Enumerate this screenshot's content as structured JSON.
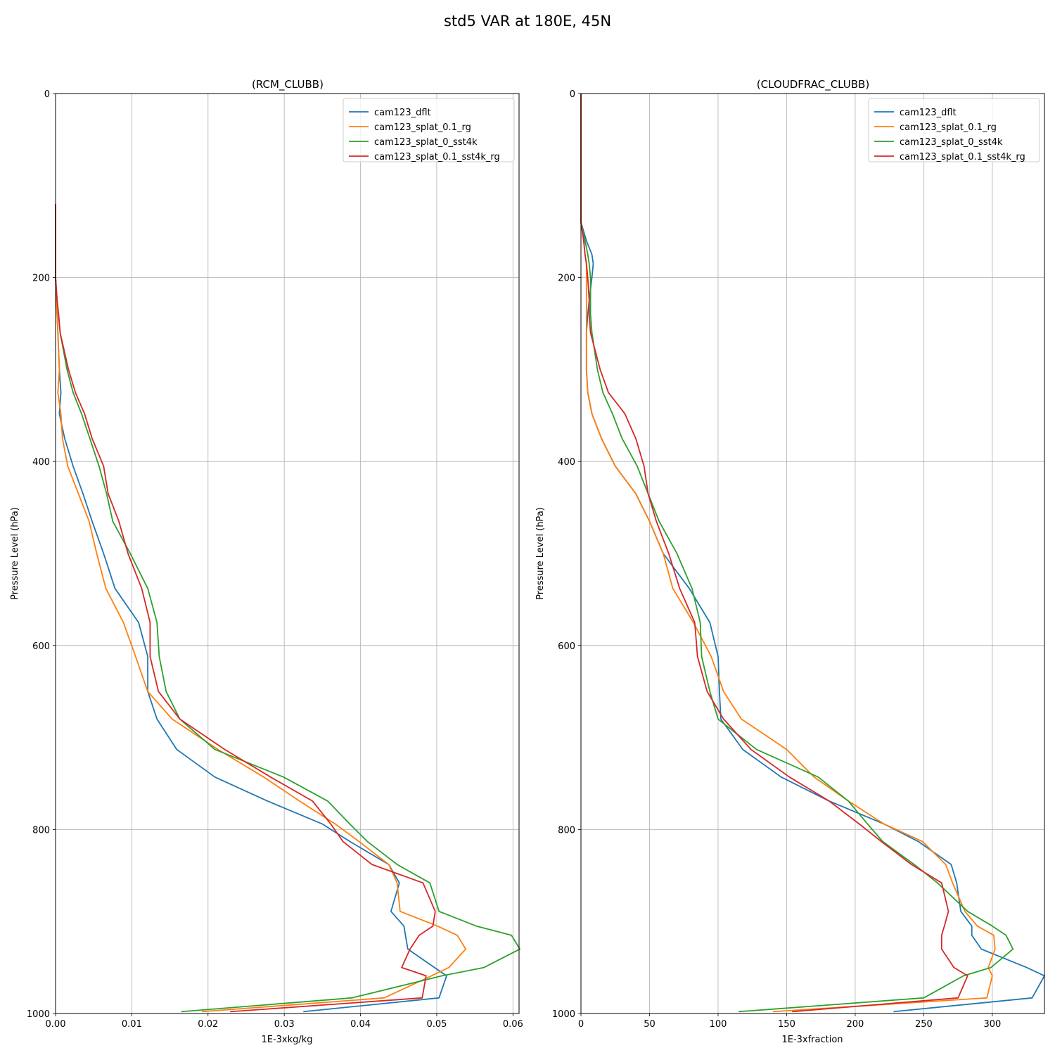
{
  "figure": {
    "title": "std5 VAR at 180E, 45N"
  },
  "colors": {
    "cam123_dflt": "#1f77b4",
    "cam123_splat_0.1_rg": "#ff7f0e",
    "cam123_splat_0_sst4k": "#2ca02c",
    "cam123_splat_0.1_sst4k_rg": "#d62728",
    "grid": "#b0b0b0"
  },
  "chart_data": [
    {
      "type": "line",
      "title": "(RCM_CLUBB)",
      "xlabel": "1E-3xkg/kg",
      "ylabel": "Pressure Level (hPa)",
      "xlim": [
        0,
        0.0608
      ],
      "ylim": [
        1000,
        0
      ],
      "y_inverted": true,
      "grid": true,
      "legend": "top-right",
      "xticks": [
        0,
        0.01,
        0.02,
        0.03,
        0.04,
        0.05,
        0.06
      ],
      "xtick_labels": [
        "0.00",
        "0.01",
        "0.02",
        "0.03",
        "0.04",
        "0.05",
        "0.06"
      ],
      "yticks": [
        0,
        200,
        400,
        600,
        800,
        1000
      ],
      "ytick_labels": [
        "0",
        "200",
        "400",
        "600",
        "800",
        "1000"
      ],
      "series": [
        {
          "name": "cam123_dflt",
          "color": "#1f77b4",
          "y": [
            120,
            150,
            175,
            200,
            225,
            240,
            260,
            300,
            325,
            348,
            375,
            405,
            435,
            465,
            500,
            538,
            575,
            612,
            650,
            680,
            713,
            743,
            769,
            794,
            813,
            838,
            858,
            889,
            905,
            915,
            930,
            950,
            959,
            983,
            998
          ],
          "x": [
            0.0,
            0.0,
            0.0,
            0.0,
            0.0001,
            0.0002,
            0.0003,
            0.0005,
            0.0007,
            0.0005,
            0.0012,
            0.0023,
            0.0036,
            0.0048,
            0.0063,
            0.0078,
            0.0109,
            0.0121,
            0.0121,
            0.0133,
            0.0159,
            0.0209,
            0.0278,
            0.035,
            0.0386,
            0.0437,
            0.0451,
            0.044,
            0.0457,
            0.0459,
            0.0462,
            0.0497,
            0.0513,
            0.0503,
            0.0325
          ]
        },
        {
          "name": "cam123_splat_0.1_rg",
          "color": "#ff7f0e",
          "y": [
            120,
            150,
            175,
            200,
            225,
            240,
            260,
            300,
            325,
            348,
            375,
            405,
            435,
            465,
            500,
            538,
            575,
            612,
            650,
            680,
            713,
            743,
            769,
            794,
            813,
            838,
            858,
            889,
            905,
            915,
            930,
            950,
            959,
            983,
            998
          ],
          "x": [
            0.0,
            0.0,
            0.0,
            0.0,
            0.0001,
            0.0002,
            0.0003,
            0.0005,
            0.0003,
            0.0007,
            0.0009,
            0.0016,
            0.003,
            0.0044,
            0.0054,
            0.0066,
            0.0089,
            0.0105,
            0.0121,
            0.0153,
            0.0213,
            0.0273,
            0.032,
            0.0367,
            0.0398,
            0.0437,
            0.0448,
            0.0452,
            0.0501,
            0.0527,
            0.0538,
            0.0516,
            0.0493,
            0.0431,
            0.0192
          ]
        },
        {
          "name": "cam123_splat_0_sst4k",
          "color": "#2ca02c",
          "y": [
            120,
            150,
            175,
            200,
            225,
            240,
            260,
            300,
            325,
            348,
            375,
            405,
            435,
            465,
            500,
            538,
            575,
            612,
            650,
            680,
            713,
            743,
            769,
            794,
            813,
            838,
            858,
            889,
            905,
            915,
            930,
            950,
            959,
            983,
            998
          ],
          "x": [
            0.0,
            0.0,
            0.0,
            0.0,
            0.0002,
            0.0004,
            0.0006,
            0.0015,
            0.0023,
            0.0034,
            0.0045,
            0.0057,
            0.0067,
            0.0075,
            0.0098,
            0.0121,
            0.0133,
            0.0136,
            0.0145,
            0.0163,
            0.0209,
            0.0299,
            0.0357,
            0.0386,
            0.0409,
            0.0448,
            0.0491,
            0.0503,
            0.0552,
            0.0598,
            0.0609,
            0.0562,
            0.0507,
            0.0389,
            0.0165
          ]
        },
        {
          "name": "cam123_splat_0.1_sst4k_rg",
          "color": "#d62728",
          "y": [
            120,
            150,
            175,
            200,
            225,
            240,
            260,
            300,
            325,
            348,
            375,
            405,
            435,
            465,
            500,
            538,
            575,
            612,
            650,
            680,
            713,
            743,
            769,
            794,
            813,
            838,
            858,
            889,
            905,
            915,
            930,
            950,
            959,
            983,
            998
          ],
          "x": [
            0.0,
            0.0,
            0.0,
            0.0,
            0.0002,
            0.0004,
            0.0006,
            0.0017,
            0.0026,
            0.0038,
            0.0048,
            0.0063,
            0.0069,
            0.0083,
            0.0095,
            0.0113,
            0.0124,
            0.0124,
            0.0135,
            0.0163,
            0.0222,
            0.0282,
            0.0337,
            0.0361,
            0.0377,
            0.0415,
            0.0482,
            0.0498,
            0.0495,
            0.0477,
            0.0465,
            0.0454,
            0.0486,
            0.0481,
            0.0229
          ]
        }
      ]
    },
    {
      "type": "line",
      "title": "(CLOUDFRAC_CLUBB)",
      "xlabel": "1E-3xfraction",
      "ylabel": "Pressure Level (hPa)",
      "xlim": [
        0,
        338
      ],
      "ylim": [
        1000,
        0
      ],
      "y_inverted": true,
      "grid": true,
      "legend": "top-right",
      "xticks": [
        0,
        50,
        100,
        150,
        200,
        250,
        300
      ],
      "xtick_labels": [
        "0",
        "50",
        "100",
        "150",
        "200",
        "250",
        "300"
      ],
      "yticks": [
        0,
        200,
        400,
        600,
        800,
        1000
      ],
      "ytick_labels": [
        "0",
        "200",
        "400",
        "600",
        "800",
        "1000"
      ],
      "series": [
        {
          "name": "cam123_dflt",
          "color": "#1f77b4",
          "y": [
            0,
            100,
            125,
            140,
            160,
            175,
            185,
            200,
            225,
            240,
            260,
            300,
            325,
            348,
            375,
            405,
            435,
            465,
            500,
            538,
            575,
            612,
            650,
            680,
            713,
            743,
            769,
            794,
            813,
            838,
            858,
            889,
            905,
            915,
            930,
            950,
            959,
            983,
            998
          ],
          "x": [
            0,
            0,
            0,
            0,
            4,
            8,
            9,
            8,
            6,
            5,
            4,
            4,
            5,
            8,
            15,
            25,
            40,
            50,
            60,
            79,
            94,
            100,
            101,
            102,
            118,
            146,
            181,
            221,
            246,
            270,
            274,
            277,
            285,
            285,
            292,
            325,
            338,
            329,
            228
          ]
        },
        {
          "name": "cam123_splat_0.1_rg",
          "color": "#ff7f0e",
          "y": [
            0,
            100,
            125,
            140,
            160,
            175,
            185,
            200,
            225,
            240,
            260,
            300,
            325,
            348,
            375,
            405,
            435,
            465,
            500,
            538,
            575,
            612,
            650,
            680,
            713,
            743,
            769,
            794,
            813,
            838,
            858,
            889,
            905,
            915,
            930,
            950,
            959,
            983,
            998
          ],
          "x": [
            0,
            0,
            0,
            0,
            2,
            3,
            4,
            4,
            4,
            4,
            4,
            4,
            5,
            8,
            15,
            25,
            40,
            50,
            60,
            67,
            82,
            95,
            104,
            117,
            150,
            170,
            195,
            221,
            249,
            266,
            271,
            280,
            289,
            301,
            302,
            297,
            300,
            296,
            140
          ]
        },
        {
          "name": "cam123_splat_0_sst4k",
          "color": "#2ca02c",
          "y": [
            0,
            100,
            125,
            140,
            160,
            175,
            185,
            200,
            225,
            240,
            260,
            300,
            325,
            348,
            375,
            405,
            435,
            465,
            500,
            538,
            575,
            612,
            650,
            680,
            713,
            743,
            769,
            794,
            813,
            838,
            858,
            889,
            905,
            915,
            930,
            950,
            959,
            983,
            998
          ],
          "x": [
            0,
            0,
            0,
            0,
            3,
            5,
            6,
            7,
            7,
            7,
            8,
            12,
            16,
            23,
            30,
            41,
            49,
            57,
            70,
            81,
            87,
            88,
            94,
            100,
            128,
            173,
            195,
            209,
            220,
            243,
            260,
            282,
            300,
            310,
            315,
            299,
            279,
            250,
            115
          ]
        },
        {
          "name": "cam123_splat_0.1_sst4k_rg",
          "color": "#d62728",
          "y": [
            0,
            100,
            125,
            140,
            160,
            175,
            185,
            200,
            225,
            240,
            260,
            300,
            325,
            348,
            375,
            405,
            435,
            465,
            500,
            538,
            575,
            612,
            650,
            680,
            713,
            743,
            769,
            794,
            813,
            838,
            858,
            889,
            905,
            915,
            930,
            950,
            959,
            983,
            998
          ],
          "x": [
            0,
            0,
            0,
            0,
            2,
            3,
            4,
            5,
            6,
            6,
            7,
            14,
            20,
            32,
            40,
            46,
            49,
            55,
            64,
            72,
            83,
            85,
            92,
            104,
            124,
            152,
            181,
            203,
            219,
            241,
            263,
            268,
            265,
            263,
            263,
            272,
            282,
            275,
            154
          ]
        }
      ]
    }
  ]
}
